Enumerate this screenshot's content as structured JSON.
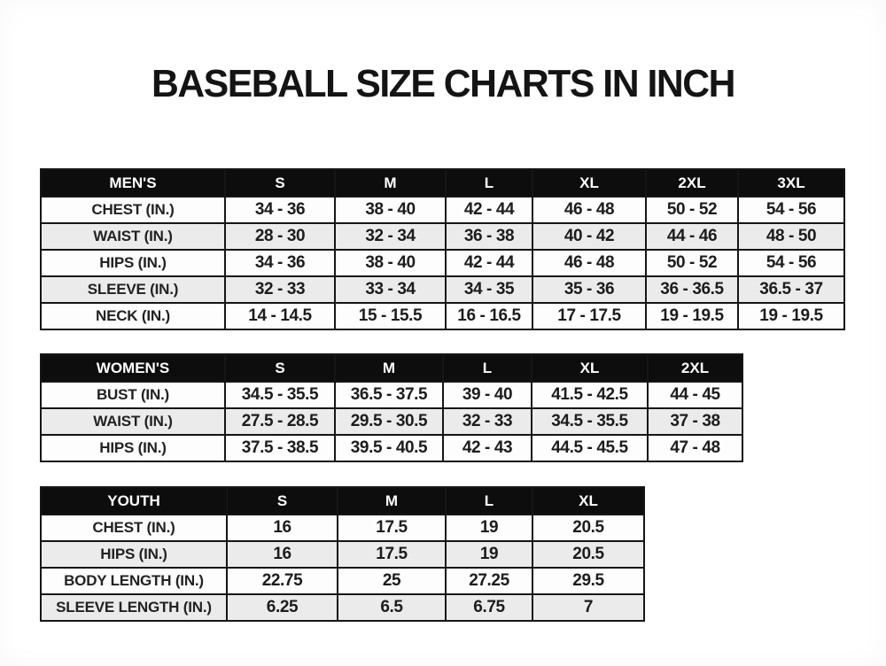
{
  "title": "BASEBALL SIZE CHARTS IN INCH",
  "tables": [
    {
      "name": "mens",
      "header": [
        "MEN'S",
        "S",
        "M",
        "L",
        "XL",
        "2XL",
        "3XL"
      ],
      "rows": [
        [
          "CHEST (IN.)",
          "34 - 36",
          "38 - 40",
          "42 - 44",
          "46 - 48",
          "50 - 52",
          "54 - 56"
        ],
        [
          "WAIST (IN.)",
          "28 - 30",
          "32 - 34",
          "36 - 38",
          "40 - 42",
          "44 - 46",
          "48 - 50"
        ],
        [
          "HIPS (IN.)",
          "34 - 36",
          "38 - 40",
          "42 - 44",
          "46 - 48",
          "50 - 52",
          "54 - 56"
        ],
        [
          "SLEEVE (IN.)",
          "32 - 33",
          "33 - 34",
          "34 - 35",
          "35 - 36",
          "36 - 36.5",
          "36.5 - 37"
        ],
        [
          "NECK (IN.)",
          "14 - 14.5",
          "15 - 15.5",
          "16 - 16.5",
          "17 - 17.5",
          "19 - 19.5",
          "19 - 19.5"
        ]
      ]
    },
    {
      "name": "womens",
      "header": [
        "WOMEN'S",
        "S",
        "M",
        "L",
        "XL",
        "2XL"
      ],
      "rows": [
        [
          "BUST (IN.)",
          "34.5 - 35.5",
          "36.5 - 37.5",
          "39 - 40",
          "41.5 - 42.5",
          "44 - 45"
        ],
        [
          "WAIST (IN.)",
          "27.5 - 28.5",
          "29.5 - 30.5",
          "32 - 33",
          "34.5 - 35.5",
          "37 - 38"
        ],
        [
          "HIPS (IN.)",
          "37.5 - 38.5",
          "39.5 - 40.5",
          "42 - 43",
          "44.5 - 45.5",
          "47 - 48"
        ]
      ]
    },
    {
      "name": "youth",
      "header": [
        "YOUTH",
        "S",
        "M",
        "L",
        "XL"
      ],
      "rows": [
        [
          "CHEST (IN.)",
          "16",
          "17.5",
          "19",
          "20.5"
        ],
        [
          "HIPS (IN.)",
          "16",
          "17.5",
          "19",
          "20.5"
        ],
        [
          "BODY LENGTH (IN.)",
          "22.75",
          "25",
          "27.25",
          "29.5"
        ],
        [
          "SLEEVE LENGTH (IN.)",
          "6.25",
          "6.5",
          "6.75",
          "7"
        ]
      ]
    }
  ],
  "colors": {
    "header_bg": "#0d0d0d",
    "header_text": "#ffffff",
    "row_bg": "#fdfdfd",
    "row_alt_bg": "#ebebeb",
    "border": "#161616",
    "title_text": "#141414"
  }
}
